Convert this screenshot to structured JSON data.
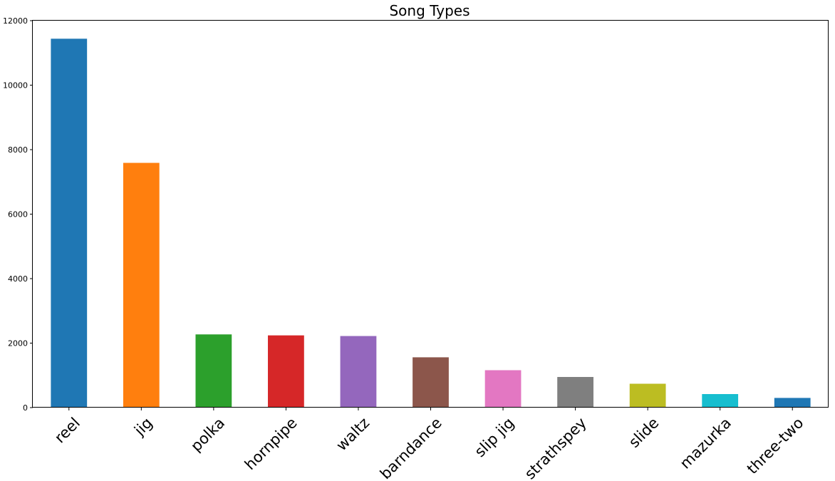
{
  "chart_data": {
    "type": "bar",
    "title": "Song Types",
    "xlabel": "",
    "ylabel": "",
    "categories": [
      "reel",
      "jig",
      "polka",
      "hornpipe",
      "waltz",
      "barndance",
      "slip jig",
      "strathspey",
      "slide",
      "mazurka",
      "three-two"
    ],
    "values": [
      11440,
      7590,
      2270,
      2240,
      2220,
      1560,
      1160,
      950,
      740,
      420,
      300
    ],
    "colors": [
      "#1f77b4",
      "#ff7f0e",
      "#2ca02c",
      "#d62728",
      "#9467bd",
      "#8c564b",
      "#e377c2",
      "#7f7f7f",
      "#bcbd22",
      "#17becf",
      "#1f77b4"
    ],
    "ylim": [
      0,
      12000
    ],
    "yticks": [
      "0",
      "2000",
      "4000",
      "6000",
      "8000",
      "10000",
      "12000"
    ],
    "grid": false,
    "legend": "none"
  }
}
